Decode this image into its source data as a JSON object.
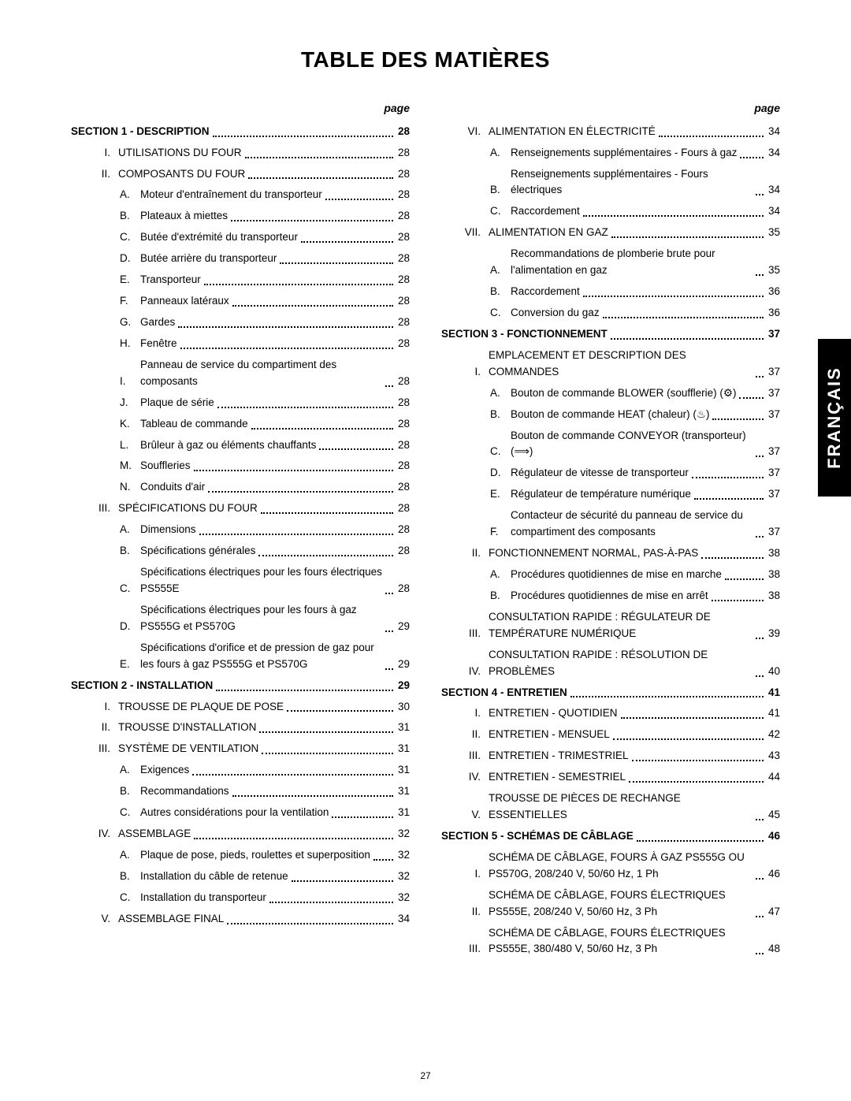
{
  "title": "TABLE DES MATIÈRES",
  "pageLabel": "page",
  "pageNumber": "27",
  "sideTab": "FRANÇAIS",
  "left": [
    {
      "type": "section",
      "text": "SECTION 1 - DESCRIPTION",
      "page": "28"
    },
    {
      "type": "roman",
      "marker": "I.",
      "text": "UTILISATIONS DU FOUR",
      "page": "28"
    },
    {
      "type": "roman",
      "marker": "II.",
      "text": "COMPOSANTS DU FOUR",
      "page": "28"
    },
    {
      "type": "letter",
      "marker": "A.",
      "text": "Moteur d'entraînement du transporteur",
      "page": "28"
    },
    {
      "type": "letter",
      "marker": "B.",
      "text": "Plateaux à miettes",
      "page": "28"
    },
    {
      "type": "letter",
      "marker": "C.",
      "text": "Butée d'extrémité du transporteur",
      "page": "28"
    },
    {
      "type": "letter",
      "marker": "D.",
      "text": "Butée arrière du transporteur",
      "page": "28"
    },
    {
      "type": "letter",
      "marker": "E.",
      "text": "Transporteur",
      "page": "28"
    },
    {
      "type": "letter",
      "marker": "F.",
      "text": "Panneaux latéraux",
      "page": "28"
    },
    {
      "type": "letter",
      "marker": "G.",
      "text": "Gardes",
      "page": "28"
    },
    {
      "type": "letter",
      "marker": "H.",
      "text": "Fenêtre",
      "page": "28"
    },
    {
      "type": "letter",
      "marker": "I.",
      "text": "Panneau de service du compartiment des composants",
      "page": "28"
    },
    {
      "type": "letter",
      "marker": "J.",
      "text": "Plaque de série",
      "page": "28"
    },
    {
      "type": "letter",
      "marker": "K.",
      "text": "Tableau de commande",
      "page": "28"
    },
    {
      "type": "letter",
      "marker": "L.",
      "text": "Brûleur à gaz ou éléments chauffants",
      "page": "28"
    },
    {
      "type": "letter",
      "marker": "M.",
      "text": "Souffleries",
      "page": "28"
    },
    {
      "type": "letter",
      "marker": "N.",
      "text": "Conduits d'air",
      "page": "28"
    },
    {
      "type": "roman",
      "marker": "III.",
      "text": "SPÉCIFICATIONS DU FOUR",
      "page": "28"
    },
    {
      "type": "letter",
      "marker": "A.",
      "text": "Dimensions",
      "page": "28"
    },
    {
      "type": "letter",
      "marker": "B.",
      "text": "Spécifications générales",
      "page": "28"
    },
    {
      "type": "letter",
      "marker": "C.",
      "text": "Spécifications électriques pour les fours électriques PS555E",
      "page": "28"
    },
    {
      "type": "letter",
      "marker": "D.",
      "text": "Spécifications électriques pour les fours à gaz PS555G et PS570G",
      "page": "29"
    },
    {
      "type": "letter",
      "marker": "E.",
      "text": "Spécifications d'orifice et de pression de gaz pour les fours à gaz PS555G et PS570G",
      "page": "29"
    },
    {
      "type": "section",
      "text": "SECTION 2 - INSTALLATION",
      "page": "29"
    },
    {
      "type": "roman",
      "marker": "I.",
      "text": "TROUSSE DE PLAQUE DE POSE",
      "page": "30"
    },
    {
      "type": "roman",
      "marker": "II.",
      "text": "TROUSSE D'INSTALLATION",
      "page": "31"
    },
    {
      "type": "roman",
      "marker": "III.",
      "text": "SYSTÈME DE VENTILATION",
      "page": "31"
    },
    {
      "type": "letter",
      "marker": "A.",
      "text": "Exigences",
      "page": "31"
    },
    {
      "type": "letter",
      "marker": "B.",
      "text": "Recommandations",
      "page": "31"
    },
    {
      "type": "letter",
      "marker": "C.",
      "text": "Autres considérations pour la ventilation",
      "page": "31"
    },
    {
      "type": "roman",
      "marker": "IV.",
      "text": "ASSEMBLAGE",
      "page": "32"
    },
    {
      "type": "letter",
      "marker": "A.",
      "text": "Plaque de pose, pieds, roulettes et superposition",
      "page": "32"
    },
    {
      "type": "letter",
      "marker": "B.",
      "text": "Installation du câble de retenue",
      "page": "32"
    },
    {
      "type": "letter",
      "marker": "C.",
      "text": "Installation du transporteur",
      "page": "32"
    },
    {
      "type": "roman",
      "marker": "V.",
      "text": "ASSEMBLAGE FINAL",
      "page": "34"
    }
  ],
  "right": [
    {
      "type": "roman",
      "marker": "VI.",
      "text": "ALIMENTATION EN ÉLECTRICITÉ",
      "page": "34"
    },
    {
      "type": "letter",
      "marker": "A.",
      "text": "Renseignements supplémentaires - Fours à gaz",
      "page": "34"
    },
    {
      "type": "letter",
      "marker": "B.",
      "text": "Renseignements supplémentaires - Fours électriques",
      "page": "34"
    },
    {
      "type": "letter",
      "marker": "C.",
      "text": "Raccordement",
      "page": "34"
    },
    {
      "type": "roman",
      "marker": "VII.",
      "text": "ALIMENTATION EN GAZ",
      "page": "35"
    },
    {
      "type": "letter",
      "marker": "A.",
      "text": "Recommandations de plomberie brute pour l'alimentation en gaz",
      "page": "35"
    },
    {
      "type": "letter",
      "marker": "B.",
      "text": "Raccordement",
      "page": "36"
    },
    {
      "type": "letter",
      "marker": "C.",
      "text": "Conversion du gaz",
      "page": "36"
    },
    {
      "type": "section",
      "text": "SECTION 3 - FONCTIONNEMENT",
      "page": "37"
    },
    {
      "type": "roman",
      "marker": "I.",
      "text": "EMPLACEMENT ET DESCRIPTION DES COMMANDES",
      "page": "37"
    },
    {
      "type": "letter",
      "marker": "A.",
      "text": "Bouton de commande BLOWER (soufflerie) (⚙)",
      "page": "37"
    },
    {
      "type": "letter",
      "marker": "B.",
      "text": "Bouton de commande HEAT (chaleur) (♨)",
      "page": "37"
    },
    {
      "type": "letter",
      "marker": "C.",
      "text": "Bouton de commande CONVEYOR (transporteur) (⟹)",
      "page": "37"
    },
    {
      "type": "letter",
      "marker": "D.",
      "text": "Régulateur de vitesse de transporteur",
      "page": "37"
    },
    {
      "type": "letter",
      "marker": "E.",
      "text": "Régulateur de température numérique",
      "page": "37"
    },
    {
      "type": "letter",
      "marker": "F.",
      "text": "Contacteur de sécurité du panneau de service du compartiment des composants",
      "page": "37"
    },
    {
      "type": "roman",
      "marker": "II.",
      "text": "FONCTIONNEMENT NORMAL, PAS-À-PAS",
      "page": "38"
    },
    {
      "type": "letter",
      "marker": "A.",
      "text": "Procédures quotidiennes de mise en marche",
      "page": "38"
    },
    {
      "type": "letter",
      "marker": "B.",
      "text": "Procédures quotidiennes de mise en arrêt",
      "page": "38"
    },
    {
      "type": "roman",
      "marker": "III.",
      "text": "CONSULTATION RAPIDE : RÉGULATEUR DE TEMPÉRATURE NUMÉRIQUE",
      "page": "39"
    },
    {
      "type": "roman",
      "marker": "IV.",
      "text": "CONSULTATION RAPIDE : RÉSOLUTION DE PROBLÈMES",
      "page": "40"
    },
    {
      "type": "section",
      "text": "SECTION 4 - ENTRETIEN",
      "page": "41"
    },
    {
      "type": "roman",
      "marker": "I.",
      "text": "ENTRETIEN - QUOTIDIEN",
      "page": "41"
    },
    {
      "type": "roman",
      "marker": "II.",
      "text": "ENTRETIEN - MENSUEL",
      "page": "42"
    },
    {
      "type": "roman",
      "marker": "III.",
      "text": "ENTRETIEN - TRIMESTRIEL",
      "page": "43"
    },
    {
      "type": "roman",
      "marker": "IV.",
      "text": "ENTRETIEN - SEMESTRIEL",
      "page": "44"
    },
    {
      "type": "roman",
      "marker": "V.",
      "text": "TROUSSE DE PIÈCES DE RECHANGE ESSENTIELLES",
      "page": "45"
    },
    {
      "type": "section",
      "text": "SECTION 5 - SCHÉMAS DE CÂBLAGE",
      "page": "46"
    },
    {
      "type": "roman",
      "marker": "I.",
      "text": "SCHÉMA DE CÂBLAGE, FOURS À GAZ PS555G OU PS570G, 208/240 V, 50/60 Hz, 1 Ph",
      "page": "46"
    },
    {
      "type": "roman",
      "marker": "II.",
      "text": "SCHÉMA DE CÂBLAGE, FOURS ÉLECTRIQUES PS555E, 208/240 V, 50/60 Hz, 3 Ph",
      "page": "47"
    },
    {
      "type": "roman",
      "marker": "III.",
      "text": "SCHÉMA DE CÂBLAGE, FOURS ÉLECTRIQUES PS555E, 380/480 V, 50/60 Hz, 3 Ph",
      "page": "48"
    }
  ]
}
